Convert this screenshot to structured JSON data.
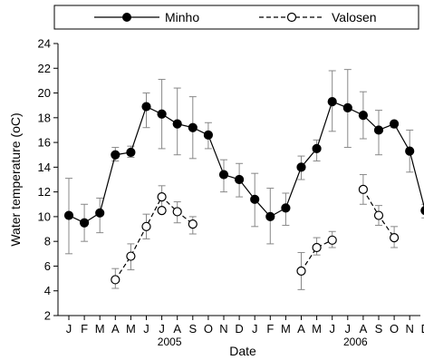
{
  "chart_data": {
    "type": "line",
    "xlabel": "Date",
    "ylabel": "Water temperature (oC)",
    "ylim": [
      2,
      24
    ],
    "yticks": [
      2,
      4,
      6,
      8,
      10,
      12,
      14,
      16,
      18,
      20,
      22,
      24
    ],
    "grid": false,
    "legend_position": "top",
    "categories": [
      "J",
      "F",
      "M",
      "A",
      "M",
      "J",
      "J",
      "A",
      "S",
      "O",
      "N",
      "D",
      "J",
      "F",
      "M",
      "A",
      "M",
      "J",
      "J",
      "A",
      "S",
      "O",
      "N",
      "D"
    ],
    "year_labels": [
      {
        "label": "2005",
        "under_index": 6.5
      },
      {
        "label": "2006",
        "under_index": 18.5
      }
    ],
    "series": [
      {
        "name": "Minho",
        "marker": "filled",
        "line_style": "solid",
        "color": "#000000",
        "values": [
          10.1,
          9.5,
          10.3,
          15.0,
          15.2,
          18.9,
          18.3,
          17.5,
          17.2,
          16.6,
          13.4,
          13.0,
          11.4,
          10.0,
          10.7,
          14.0,
          15.5,
          19.3,
          18.8,
          18.2,
          17.0,
          17.5,
          15.3,
          10.5
        ],
        "err_low": [
          7.0,
          8.0,
          8.7,
          14.5,
          14.8,
          17.2,
          15.5,
          15.0,
          14.7,
          15.5,
          12.0,
          11.6,
          9.2,
          7.8,
          9.3,
          13.0,
          14.5,
          16.9,
          15.6,
          16.3,
          15.0,
          17.2,
          13.6,
          9.9
        ],
        "err_high": [
          13.1,
          11.0,
          11.5,
          15.6,
          15.7,
          20.0,
          21.1,
          20.4,
          19.7,
          17.6,
          14.6,
          14.3,
          13.5,
          12.3,
          11.9,
          14.9,
          16.2,
          21.8,
          21.9,
          20.1,
          18.6,
          17.7,
          17.0,
          11.0
        ]
      },
      {
        "name": "Valosen",
        "marker": "open",
        "line_style": "dashed",
        "color": "#000000",
        "values": [
          null,
          null,
          null,
          4.9,
          6.8,
          9.2,
          11.6,
          10.4,
          9.4,
          null,
          null,
          null,
          null,
          null,
          null,
          5.6,
          7.5,
          8.1,
          null,
          12.2,
          10.1,
          8.3,
          null,
          null
        ],
        "err_low": [
          null,
          null,
          null,
          4.2,
          5.7,
          8.2,
          10.5,
          9.5,
          8.6,
          null,
          null,
          null,
          null,
          null,
          null,
          4.1,
          6.9,
          7.5,
          null,
          11.0,
          9.3,
          7.5,
          null,
          null
        ],
        "err_high": [
          null,
          null,
          null,
          5.8,
          7.8,
          10.2,
          12.5,
          11.2,
          10.0,
          null,
          null,
          null,
          null,
          null,
          null,
          7.1,
          8.3,
          8.8,
          null,
          13.4,
          10.9,
          9.2,
          null,
          null
        ],
        "open_overlay": [
          {
            "index": 6,
            "value": 10.5
          }
        ]
      }
    ]
  }
}
